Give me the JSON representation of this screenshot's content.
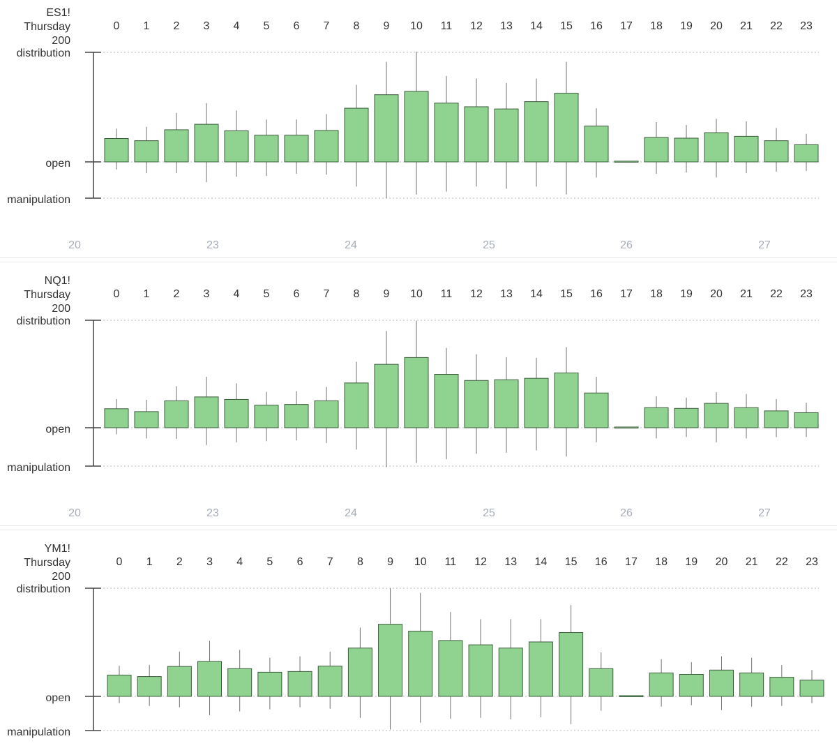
{
  "colors": {
    "body_fill": "#90d290",
    "body_stroke": "#3d5c3d",
    "wick": "#6f6f6f",
    "axis": "#444444",
    "grid": "#b8b8b8",
    "text": "#333333",
    "date_text": "#a6acb8"
  },
  "axis_labels": {
    "top": "distribution",
    "mid": "open",
    "bottom": "manipulation"
  },
  "hours": [
    "0",
    "1",
    "2",
    "3",
    "4",
    "5",
    "6",
    "7",
    "8",
    "9",
    "10",
    "11",
    "12",
    "13",
    "14",
    "15",
    "16",
    "17",
    "18",
    "19",
    "20",
    "21",
    "22",
    "23"
  ],
  "date_ticks": [
    "20",
    "23",
    "24",
    "25",
    "26",
    "27"
  ],
  "chart_data": [
    {
      "type": "candlestick",
      "title_lines": [
        "ES1!",
        "Thursday",
        "200"
      ],
      "categories": [
        "0",
        "1",
        "2",
        "3",
        "4",
        "5",
        "6",
        "7",
        "8",
        "9",
        "10",
        "11",
        "12",
        "13",
        "14",
        "15",
        "16",
        "17",
        "18",
        "19",
        "20",
        "21",
        "22",
        "23"
      ],
      "ylim": [
        -1,
        3
      ],
      "y_ticks": {
        "distribution": 3,
        "open": 0,
        "manipulation": -1
      },
      "open": [
        0,
        0,
        0,
        0,
        0,
        0,
        0,
        0,
        0,
        0,
        0,
        0,
        0,
        0,
        0,
        0,
        0,
        0,
        0,
        0,
        0,
        0,
        0,
        0
      ],
      "close": [
        0.64,
        0.58,
        0.88,
        1.03,
        0.85,
        0.73,
        0.73,
        0.86,
        1.47,
        1.84,
        1.93,
        1.61,
        1.51,
        1.45,
        1.65,
        1.88,
        0.98,
        0.02,
        0.67,
        0.65,
        0.8,
        0.7,
        0.58,
        0.47
      ],
      "high": [
        0.91,
        0.96,
        1.34,
        1.61,
        1.41,
        1.16,
        1.16,
        1.31,
        2.11,
        2.74,
        3.02,
        2.35,
        2.28,
        2.16,
        2.28,
        2.74,
        1.47,
        0.02,
        1.09,
        1.01,
        1.18,
        1.11,
        0.93,
        0.77
      ],
      "low": [
        -0.21,
        -0.31,
        -0.31,
        -0.56,
        -0.41,
        -0.39,
        -0.33,
        -0.35,
        -0.68,
        -1.0,
        -0.9,
        -0.82,
        -0.68,
        -0.74,
        -0.68,
        -0.9,
        -0.43,
        0,
        -0.33,
        -0.29,
        -0.43,
        -0.31,
        -0.27,
        -0.25
      ],
      "date_ticks": [
        "20",
        "23",
        "24",
        "25",
        "26",
        "27"
      ]
    },
    {
      "type": "candlestick",
      "title_lines": [
        "NQ1!",
        "Thursday",
        "200"
      ],
      "categories": [
        "0",
        "1",
        "2",
        "3",
        "4",
        "5",
        "6",
        "7",
        "8",
        "9",
        "10",
        "11",
        "12",
        "13",
        "14",
        "15",
        "16",
        "17",
        "18",
        "19",
        "20",
        "21",
        "22",
        "23"
      ],
      "ylim": [
        -1,
        3
      ],
      "y_ticks": {
        "distribution": 3,
        "open": 0,
        "manipulation": -1
      },
      "open": [
        0,
        0,
        0,
        0,
        0,
        0,
        0,
        0,
        0,
        0,
        0,
        0,
        0,
        0,
        0,
        0,
        0,
        0,
        0,
        0,
        0,
        0,
        0,
        0
      ],
      "close": [
        0.53,
        0.45,
        0.75,
        0.86,
        0.79,
        0.63,
        0.65,
        0.75,
        1.25,
        1.77,
        1.96,
        1.49,
        1.32,
        1.34,
        1.38,
        1.53,
        0.97,
        0.02,
        0.56,
        0.54,
        0.68,
        0.56,
        0.47,
        0.42
      ],
      "high": [
        0.8,
        0.78,
        1.16,
        1.42,
        1.24,
        1.0,
        1.02,
        1.14,
        1.84,
        2.7,
        2.99,
        2.23,
        2.05,
        1.97,
        1.95,
        2.25,
        1.42,
        0.02,
        0.88,
        0.84,
        0.99,
        0.94,
        0.8,
        0.7
      ],
      "low": [
        -0.17,
        -0.28,
        -0.29,
        -0.45,
        -0.38,
        -0.35,
        -0.33,
        -0.4,
        -0.57,
        -1.03,
        -0.92,
        -0.82,
        -0.68,
        -0.65,
        -0.59,
        -0.75,
        -0.38,
        0,
        -0.28,
        -0.24,
        -0.38,
        -0.28,
        -0.24,
        -0.24
      ],
      "date_ticks": [
        "20",
        "23",
        "24",
        "25",
        "26",
        "27"
      ]
    },
    {
      "type": "candlestick",
      "title_lines": [
        "YM1!",
        "Thursday",
        "200"
      ],
      "categories": [
        "0",
        "1",
        "2",
        "3",
        "4",
        "5",
        "6",
        "7",
        "8",
        "9",
        "10",
        "11",
        "12",
        "13",
        "14",
        "15",
        "16",
        "17",
        "18",
        "19",
        "20",
        "21",
        "22",
        "23"
      ],
      "ylim": [
        -1,
        3
      ],
      "y_ticks": {
        "distribution": 3,
        "open": 0,
        "manipulation": -1
      },
      "open": [
        0,
        0,
        0,
        0,
        0,
        0,
        0,
        0,
        0,
        0,
        0,
        0,
        0,
        0,
        0,
        0,
        0,
        0,
        0,
        0,
        0,
        0,
        0,
        0
      ],
      "close": [
        0.59,
        0.55,
        0.83,
        0.97,
        0.77,
        0.67,
        0.69,
        0.84,
        1.34,
        2.0,
        1.81,
        1.55,
        1.43,
        1.34,
        1.51,
        1.77,
        0.77,
        0.02,
        0.65,
        0.61,
        0.73,
        0.65,
        0.53,
        0.45
      ],
      "high": [
        0.85,
        0.87,
        1.24,
        1.54,
        1.29,
        1.07,
        1.11,
        1.24,
        1.91,
        3.0,
        2.87,
        2.34,
        2.14,
        2.14,
        2.14,
        2.53,
        1.22,
        0.02,
        1.03,
        0.95,
        1.11,
        1.07,
        0.87,
        0.73
      ],
      "low": [
        -0.2,
        -0.28,
        -0.32,
        -0.55,
        -0.44,
        -0.38,
        -0.32,
        -0.36,
        -0.63,
        -0.97,
        -0.77,
        -0.65,
        -0.63,
        -0.67,
        -0.61,
        -0.81,
        -0.42,
        0,
        -0.3,
        -0.26,
        -0.4,
        -0.3,
        -0.28,
        -0.2
      ],
      "date_ticks": []
    }
  ]
}
